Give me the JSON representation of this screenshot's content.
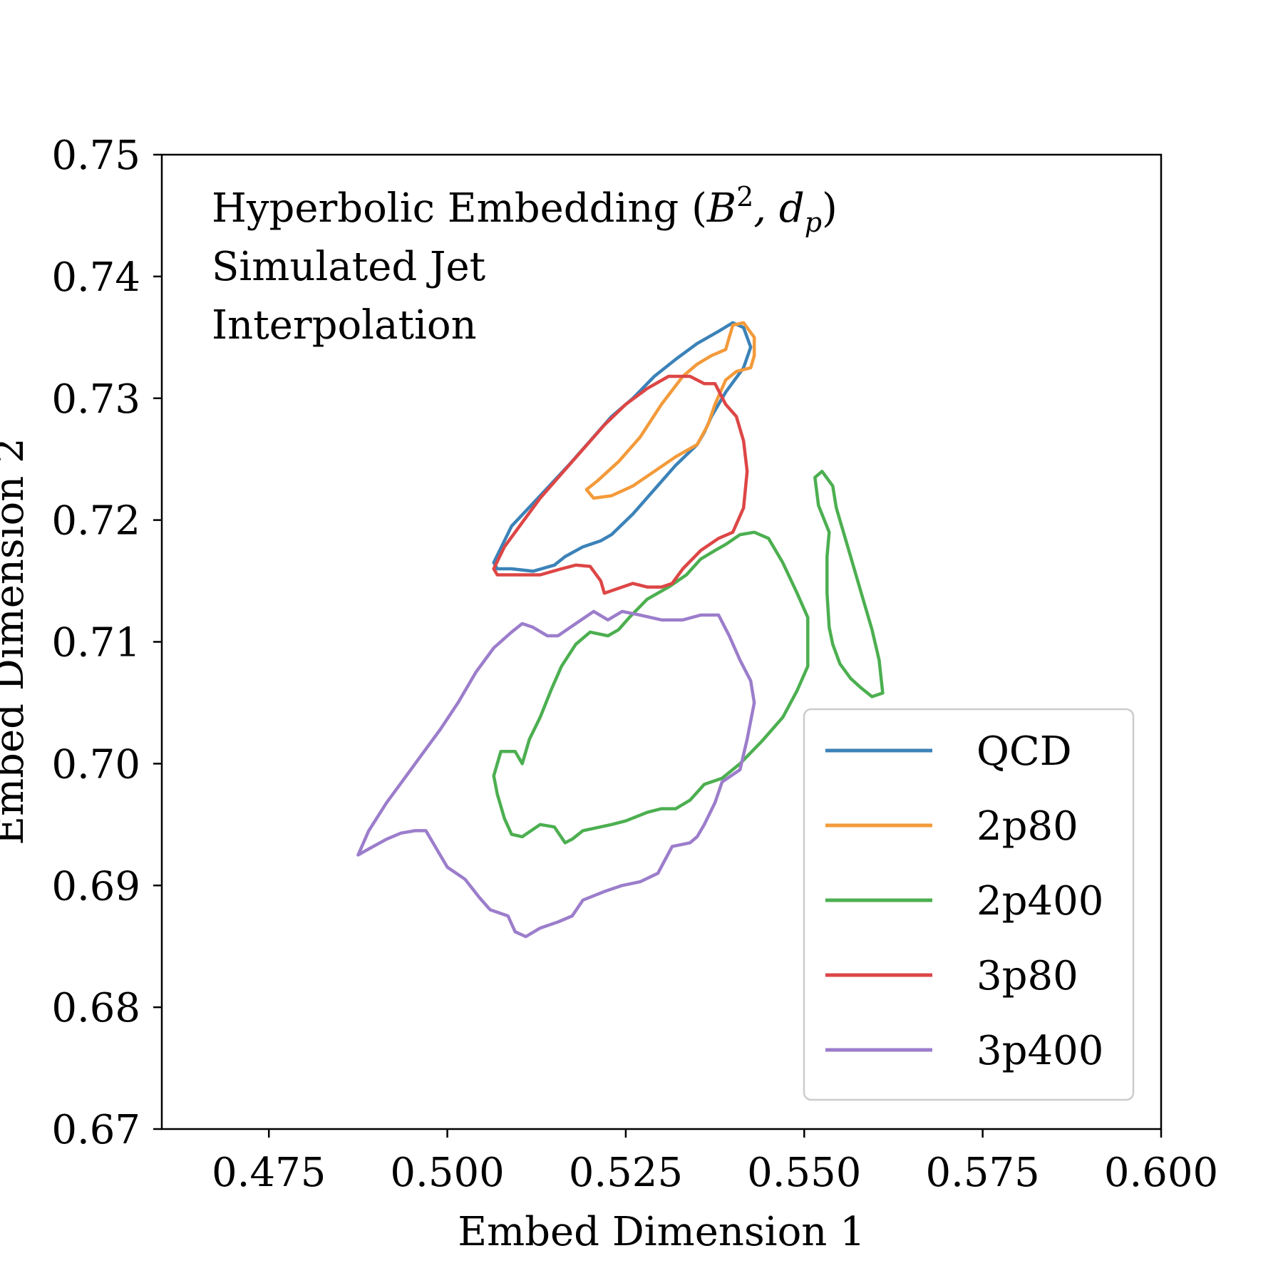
{
  "chart_data": {
    "type": "line",
    "subtype": "contour",
    "xlabel": "Embed Dimension 1",
    "ylabel": "Embed Dimension 2",
    "xlim": [
      0.46,
      0.6
    ],
    "ylim": [
      0.67,
      0.75
    ],
    "x_ticks": [
      0.475,
      0.5,
      0.525,
      0.55,
      0.575,
      0.6
    ],
    "x_tick_labels": [
      "0.475",
      "0.500",
      "0.525",
      "0.550",
      "0.575",
      "0.600"
    ],
    "y_ticks": [
      0.67,
      0.68,
      0.69,
      0.7,
      0.71,
      0.72,
      0.73,
      0.74,
      0.75
    ],
    "y_tick_labels": [
      "0.67",
      "0.68",
      "0.69",
      "0.70",
      "0.71",
      "0.72",
      "0.73",
      "0.74",
      "0.75"
    ],
    "grid": false,
    "legend_position": "lower-right",
    "annotation_lines": [
      "Hyperbolic Embedding (",
      "Simulated Jet",
      "Interpolation"
    ],
    "annotation_math": {
      "script_letter": "B",
      "superscript": "2",
      "comma": ", d",
      "subscript": "p",
      "close": ")"
    },
    "series": [
      {
        "name": "QCD",
        "color": "#3b82b8",
        "points": [
          [
            0.5065,
            0.7165
          ],
          [
            0.509,
            0.7195
          ],
          [
            0.513,
            0.722
          ],
          [
            0.517,
            0.7245
          ],
          [
            0.52,
            0.7265
          ],
          [
            0.523,
            0.7285
          ],
          [
            0.526,
            0.73
          ],
          [
            0.529,
            0.7318
          ],
          [
            0.532,
            0.7332
          ],
          [
            0.535,
            0.7345
          ],
          [
            0.538,
            0.7355
          ],
          [
            0.54,
            0.7362
          ],
          [
            0.5415,
            0.7358
          ],
          [
            0.5425,
            0.7342
          ],
          [
            0.5415,
            0.7325
          ],
          [
            0.539,
            0.7305
          ],
          [
            0.537,
            0.7285
          ],
          [
            0.536,
            0.7272
          ],
          [
            0.535,
            0.7262
          ],
          [
            0.532,
            0.7245
          ],
          [
            0.529,
            0.7225
          ],
          [
            0.526,
            0.7205
          ],
          [
            0.523,
            0.7188
          ],
          [
            0.5215,
            0.7183
          ],
          [
            0.519,
            0.7178
          ],
          [
            0.5165,
            0.717
          ],
          [
            0.515,
            0.7163
          ],
          [
            0.512,
            0.7158
          ],
          [
            0.509,
            0.716
          ],
          [
            0.507,
            0.716
          ],
          [
            0.5065,
            0.7165
          ]
        ]
      },
      {
        "name": "2p80",
        "color": "#f39a3a",
        "points": [
          [
            0.5195,
            0.7225
          ],
          [
            0.5205,
            0.7218
          ],
          [
            0.523,
            0.722
          ],
          [
            0.526,
            0.7228
          ],
          [
            0.529,
            0.724
          ],
          [
            0.532,
            0.7252
          ],
          [
            0.535,
            0.7262
          ],
          [
            0.5365,
            0.7278
          ],
          [
            0.5375,
            0.7295
          ],
          [
            0.539,
            0.7315
          ],
          [
            0.5405,
            0.7322
          ],
          [
            0.5425,
            0.7325
          ],
          [
            0.543,
            0.7335
          ],
          [
            0.543,
            0.735
          ],
          [
            0.5415,
            0.7362
          ],
          [
            0.54,
            0.736
          ],
          [
            0.5395,
            0.735
          ],
          [
            0.539,
            0.734
          ],
          [
            0.537,
            0.7335
          ],
          [
            0.535,
            0.7328
          ],
          [
            0.533,
            0.7318
          ],
          [
            0.53,
            0.7295
          ],
          [
            0.527,
            0.7268
          ],
          [
            0.524,
            0.7248
          ],
          [
            0.521,
            0.7232
          ],
          [
            0.5195,
            0.7225
          ]
        ]
      },
      {
        "name": "2p400",
        "color": "#4caf50",
        "points": [
          [
            0.5065,
            0.699
          ],
          [
            0.5075,
            0.701
          ],
          [
            0.5095,
            0.701
          ],
          [
            0.5105,
            0.7
          ],
          [
            0.5115,
            0.702
          ],
          [
            0.513,
            0.7038
          ],
          [
            0.5145,
            0.706
          ],
          [
            0.516,
            0.708
          ],
          [
            0.518,
            0.7098
          ],
          [
            0.52,
            0.7108
          ],
          [
            0.5225,
            0.7105
          ],
          [
            0.524,
            0.711
          ],
          [
            0.5255,
            0.712
          ],
          [
            0.528,
            0.7135
          ],
          [
            0.531,
            0.7145
          ],
          [
            0.5335,
            0.7155
          ],
          [
            0.5355,
            0.7168
          ],
          [
            0.5375,
            0.7175
          ],
          [
            0.539,
            0.718
          ],
          [
            0.541,
            0.7188
          ],
          [
            0.543,
            0.719
          ],
          [
            0.545,
            0.7185
          ],
          [
            0.547,
            0.7165
          ],
          [
            0.549,
            0.714
          ],
          [
            0.5505,
            0.712
          ],
          [
            0.5505,
            0.71
          ],
          [
            0.5505,
            0.708
          ],
          [
            0.549,
            0.706
          ],
          [
            0.547,
            0.7038
          ],
          [
            0.544,
            0.7018
          ],
          [
            0.541,
            0.7
          ],
          [
            0.5385,
            0.6988
          ],
          [
            0.536,
            0.6983
          ],
          [
            0.534,
            0.697
          ],
          [
            0.532,
            0.6963
          ],
          [
            0.53,
            0.6963
          ],
          [
            0.528,
            0.696
          ],
          [
            0.525,
            0.6953
          ],
          [
            0.523,
            0.695
          ],
          [
            0.519,
            0.6945
          ],
          [
            0.5175,
            0.6938
          ],
          [
            0.5165,
            0.6935
          ],
          [
            0.515,
            0.6948
          ],
          [
            0.513,
            0.695
          ],
          [
            0.5105,
            0.694
          ],
          [
            0.509,
            0.6942
          ],
          [
            0.508,
            0.6955
          ],
          [
            0.507,
            0.6975
          ],
          [
            0.5065,
            0.699
          ]
        ]
      },
      {
        "name": "2p400",
        "show_in_legend": false,
        "color": "#4caf50",
        "points": [
          [
            0.5515,
            0.7235
          ],
          [
            0.5525,
            0.724
          ],
          [
            0.554,
            0.7228
          ],
          [
            0.5545,
            0.721
          ],
          [
            0.556,
            0.718
          ],
          [
            0.557,
            0.716
          ],
          [
            0.558,
            0.714
          ],
          [
            0.5595,
            0.711
          ],
          [
            0.5605,
            0.7085
          ],
          [
            0.561,
            0.7058
          ],
          [
            0.5595,
            0.7055
          ],
          [
            0.558,
            0.7062
          ],
          [
            0.5565,
            0.707
          ],
          [
            0.555,
            0.7082
          ],
          [
            0.554,
            0.7098
          ],
          [
            0.5535,
            0.7112
          ],
          [
            0.5532,
            0.714
          ],
          [
            0.5532,
            0.717
          ],
          [
            0.5535,
            0.719
          ],
          [
            0.552,
            0.7212
          ],
          [
            0.5515,
            0.7235
          ]
        ]
      },
      {
        "name": "3p80",
        "color": "#dd4646",
        "points": [
          [
            0.5065,
            0.716
          ],
          [
            0.508,
            0.7178
          ],
          [
            0.5105,
            0.7198
          ],
          [
            0.513,
            0.7218
          ],
          [
            0.516,
            0.7238
          ],
          [
            0.519,
            0.7258
          ],
          [
            0.522,
            0.7278
          ],
          [
            0.525,
            0.7295
          ],
          [
            0.528,
            0.7308
          ],
          [
            0.531,
            0.7318
          ],
          [
            0.534,
            0.7318
          ],
          [
            0.536,
            0.7312
          ],
          [
            0.5375,
            0.7312
          ],
          [
            0.539,
            0.7295
          ],
          [
            0.5405,
            0.7285
          ],
          [
            0.5415,
            0.7265
          ],
          [
            0.542,
            0.724
          ],
          [
            0.5415,
            0.721
          ],
          [
            0.54,
            0.719
          ],
          [
            0.538,
            0.7185
          ],
          [
            0.5355,
            0.7175
          ],
          [
            0.533,
            0.716
          ],
          [
            0.5315,
            0.7148
          ],
          [
            0.53,
            0.7145
          ],
          [
            0.528,
            0.7145
          ],
          [
            0.526,
            0.7148
          ],
          [
            0.5245,
            0.7145
          ],
          [
            0.522,
            0.714
          ],
          [
            0.5215,
            0.715
          ],
          [
            0.52,
            0.7162
          ],
          [
            0.518,
            0.7163
          ],
          [
            0.516,
            0.716
          ],
          [
            0.513,
            0.7155
          ],
          [
            0.51,
            0.7155
          ],
          [
            0.507,
            0.7155
          ],
          [
            0.5065,
            0.716
          ]
        ]
      },
      {
        "name": "3p400",
        "color": "#9c7dcb",
        "points": [
          [
            0.4875,
            0.6925
          ],
          [
            0.489,
            0.6945
          ],
          [
            0.4915,
            0.6968
          ],
          [
            0.494,
            0.6988
          ],
          [
            0.4965,
            0.7008
          ],
          [
            0.499,
            0.7028
          ],
          [
            0.5015,
            0.705
          ],
          [
            0.504,
            0.7075
          ],
          [
            0.5065,
            0.7095
          ],
          [
            0.509,
            0.7108
          ],
          [
            0.5105,
            0.7115
          ],
          [
            0.512,
            0.7112
          ],
          [
            0.514,
            0.7105
          ],
          [
            0.5155,
            0.7105
          ],
          [
            0.518,
            0.7115
          ],
          [
            0.5205,
            0.7125
          ],
          [
            0.5225,
            0.7118
          ],
          [
            0.5245,
            0.7125
          ],
          [
            0.527,
            0.7122
          ],
          [
            0.53,
            0.7118
          ],
          [
            0.533,
            0.7118
          ],
          [
            0.5355,
            0.7122
          ],
          [
            0.538,
            0.7122
          ],
          [
            0.5395,
            0.7105
          ],
          [
            0.541,
            0.7085
          ],
          [
            0.5425,
            0.7068
          ],
          [
            0.543,
            0.705
          ],
          [
            0.542,
            0.702
          ],
          [
            0.541,
            0.6995
          ],
          [
            0.5385,
            0.6985
          ],
          [
            0.5375,
            0.6968
          ],
          [
            0.536,
            0.695
          ],
          [
            0.535,
            0.694
          ],
          [
            0.534,
            0.6935
          ],
          [
            0.5315,
            0.6932
          ],
          [
            0.5295,
            0.691
          ],
          [
            0.527,
            0.6903
          ],
          [
            0.5245,
            0.69
          ],
          [
            0.522,
            0.6895
          ],
          [
            0.519,
            0.6888
          ],
          [
            0.5175,
            0.6875
          ],
          [
            0.5155,
            0.687
          ],
          [
            0.513,
            0.6865
          ],
          [
            0.511,
            0.6858
          ],
          [
            0.5095,
            0.6862
          ],
          [
            0.5085,
            0.6875
          ],
          [
            0.506,
            0.688
          ],
          [
            0.5045,
            0.689
          ],
          [
            0.5025,
            0.6905
          ],
          [
            0.5,
            0.6915
          ],
          [
            0.4985,
            0.693
          ],
          [
            0.497,
            0.6945
          ],
          [
            0.4955,
            0.6945
          ],
          [
            0.4935,
            0.6943
          ],
          [
            0.4915,
            0.6938
          ],
          [
            0.489,
            0.693
          ],
          [
            0.4875,
            0.6925
          ]
        ]
      }
    ]
  }
}
